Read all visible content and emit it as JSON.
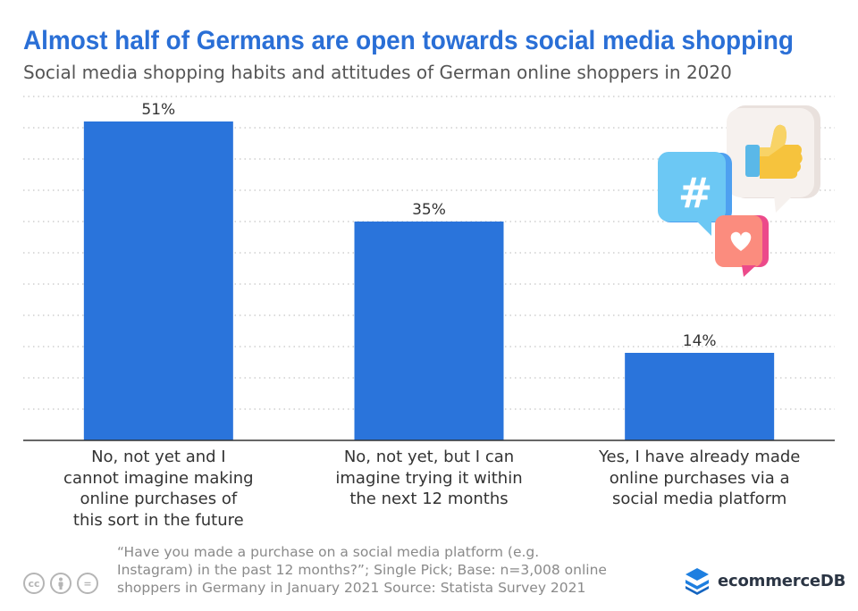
{
  "chart_data": {
    "type": "bar",
    "title": "Almost half of Germans are open towards social media shopping",
    "subtitle": "Social media shopping habits and attitudes of German online shoppers in 2020",
    "categories": [
      [
        "No, not yet and I",
        "cannot imagine making",
        "online purchases of",
        "this sort in the future"
      ],
      [
        "No, not yet, but I can",
        "imagine trying it within",
        "the next 12 months"
      ],
      [
        "Yes, I have already made",
        "online purchases via a",
        "social media platform"
      ]
    ],
    "values": [
      51,
      35,
      14
    ],
    "data_labels": [
      "51%",
      "35%",
      "14%"
    ],
    "unit": "%",
    "ylim": [
      0,
      55
    ],
    "grid": "dotted",
    "bar_color": "#2a74db",
    "xlabel": "",
    "ylabel": ""
  },
  "footnote": {
    "lines": [
      "“Have you made a purchase on a social media platform (e.g.",
      "Instagram) in the past 12 months?”; Single Pick; Base: n=3,008 online",
      "shoppers in Germany in January 2021 Source: Statista Survey 2021"
    ]
  },
  "license_icons": [
    {
      "name": "cc-icon",
      "glyph": "cc"
    },
    {
      "name": "attribution-icon",
      "glyph": "●"
    },
    {
      "name": "no-derivatives-icon",
      "glyph": "="
    }
  ],
  "brand": {
    "name": "ecommerceDB",
    "color": "#1e7fe0"
  },
  "illustration": {
    "icons": [
      "thumbs-up-icon",
      "hashtag-icon",
      "heart-icon"
    ]
  }
}
